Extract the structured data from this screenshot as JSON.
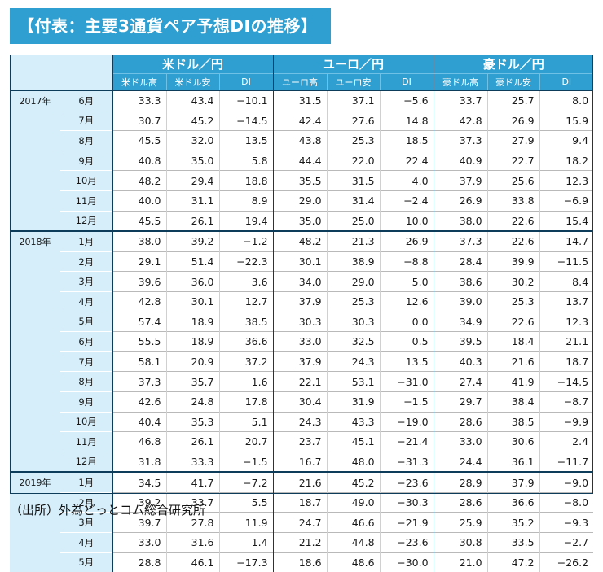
{
  "title": "【付表：主要3通貨ペア予想DIの推移】",
  "groups": [
    {
      "name": "米ドル／円",
      "cols": [
        "米ドル高",
        "米ドル安",
        "DI"
      ]
    },
    {
      "name": "ユーロ／円",
      "cols": [
        "ユーロ高",
        "ユーロ安",
        "DI"
      ]
    },
    {
      "name": "豪ドル／円",
      "cols": [
        "豪ドル高",
        "豪ドル安",
        "DI"
      ]
    }
  ],
  "years": [
    {
      "year": "2017年",
      "rows": [
        {
          "month": "6月",
          "values": [
            "33.3",
            "43.4",
            "−10.1",
            "31.5",
            "37.1",
            "−5.6",
            "33.7",
            "25.7",
            "8.0"
          ]
        },
        {
          "month": "7月",
          "values": [
            "30.7",
            "45.2",
            "−14.5",
            "42.4",
            "27.6",
            "14.8",
            "42.8",
            "26.9",
            "15.9"
          ]
        },
        {
          "month": "8月",
          "values": [
            "45.5",
            "32.0",
            "13.5",
            "43.8",
            "25.3",
            "18.5",
            "37.3",
            "27.9",
            "9.4"
          ]
        },
        {
          "month": "9月",
          "values": [
            "40.8",
            "35.0",
            "5.8",
            "44.4",
            "22.0",
            "22.4",
            "40.9",
            "22.7",
            "18.2"
          ]
        },
        {
          "month": "10月",
          "values": [
            "48.2",
            "29.4",
            "18.8",
            "35.5",
            "31.5",
            "4.0",
            "37.9",
            "25.6",
            "12.3"
          ]
        },
        {
          "month": "11月",
          "values": [
            "40.0",
            "31.1",
            "8.9",
            "29.0",
            "31.4",
            "−2.4",
            "26.9",
            "33.8",
            "−6.9"
          ]
        },
        {
          "month": "12月",
          "values": [
            "45.5",
            "26.1",
            "19.4",
            "35.0",
            "25.0",
            "10.0",
            "38.0",
            "22.6",
            "15.4"
          ]
        }
      ]
    },
    {
      "year": "2018年",
      "rows": [
        {
          "month": "1月",
          "values": [
            "38.0",
            "39.2",
            "−1.2",
            "48.2",
            "21.3",
            "26.9",
            "37.3",
            "22.6",
            "14.7"
          ]
        },
        {
          "month": "2月",
          "values": [
            "29.1",
            "51.4",
            "−22.3",
            "30.1",
            "38.9",
            "−8.8",
            "28.4",
            "39.9",
            "−11.5"
          ]
        },
        {
          "month": "3月",
          "values": [
            "39.6",
            "36.0",
            "3.6",
            "34.0",
            "29.0",
            "5.0",
            "38.6",
            "30.2",
            "8.4"
          ]
        },
        {
          "month": "4月",
          "values": [
            "42.8",
            "30.1",
            "12.7",
            "37.9",
            "25.3",
            "12.6",
            "39.0",
            "25.3",
            "13.7"
          ]
        },
        {
          "month": "5月",
          "values": [
            "57.4",
            "18.9",
            "38.5",
            "30.3",
            "30.3",
            "0.0",
            "34.9",
            "22.6",
            "12.3"
          ]
        },
        {
          "month": "6月",
          "values": [
            "55.5",
            "18.9",
            "36.6",
            "33.0",
            "32.5",
            "0.5",
            "39.5",
            "18.4",
            "21.1"
          ]
        },
        {
          "month": "7月",
          "values": [
            "58.1",
            "20.9",
            "37.2",
            "37.9",
            "24.3",
            "13.5",
            "40.3",
            "21.6",
            "18.7"
          ]
        },
        {
          "month": "8月",
          "values": [
            "37.3",
            "35.7",
            "1.6",
            "22.1",
            "53.1",
            "−31.0",
            "27.4",
            "41.9",
            "−14.5"
          ]
        },
        {
          "month": "9月",
          "values": [
            "42.6",
            "24.8",
            "17.8",
            "30.4",
            "31.9",
            "−1.5",
            "29.7",
            "38.4",
            "−8.7"
          ]
        },
        {
          "month": "10月",
          "values": [
            "40.4",
            "35.3",
            "5.1",
            "24.3",
            "43.3",
            "−19.0",
            "28.6",
            "38.5",
            "−9.9"
          ]
        },
        {
          "month": "11月",
          "values": [
            "46.8",
            "26.1",
            "20.7",
            "23.7",
            "45.1",
            "−21.4",
            "33.0",
            "30.6",
            "2.4"
          ]
        },
        {
          "month": "12月",
          "values": [
            "31.8",
            "33.3",
            "−1.5",
            "16.7",
            "48.0",
            "−31.3",
            "24.4",
            "36.1",
            "−11.7"
          ]
        }
      ]
    },
    {
      "year": "2019年",
      "rows": [
        {
          "month": "1月",
          "values": [
            "34.5",
            "41.7",
            "−7.2",
            "21.6",
            "45.2",
            "−23.6",
            "28.9",
            "37.9",
            "−9.0"
          ]
        },
        {
          "month": "2月",
          "values": [
            "39.2",
            "33.7",
            "5.5",
            "18.7",
            "49.0",
            "−30.3",
            "28.6",
            "36.6",
            "−8.0"
          ]
        },
        {
          "month": "3月",
          "values": [
            "39.7",
            "27.8",
            "11.9",
            "24.7",
            "46.6",
            "−21.9",
            "25.9",
            "35.2",
            "−9.3"
          ]
        },
        {
          "month": "4月",
          "values": [
            "33.0",
            "31.6",
            "1.4",
            "21.2",
            "44.8",
            "−23.6",
            "30.8",
            "33.5",
            "−2.7"
          ]
        },
        {
          "month": "5月",
          "values": [
            "28.8",
            "46.1",
            "−17.3",
            "18.6",
            "48.6",
            "−30.0",
            "21.0",
            "47.2",
            "−26.2"
          ]
        }
      ]
    }
  ],
  "source": "（出所）外為どっとコム総合研究所"
}
